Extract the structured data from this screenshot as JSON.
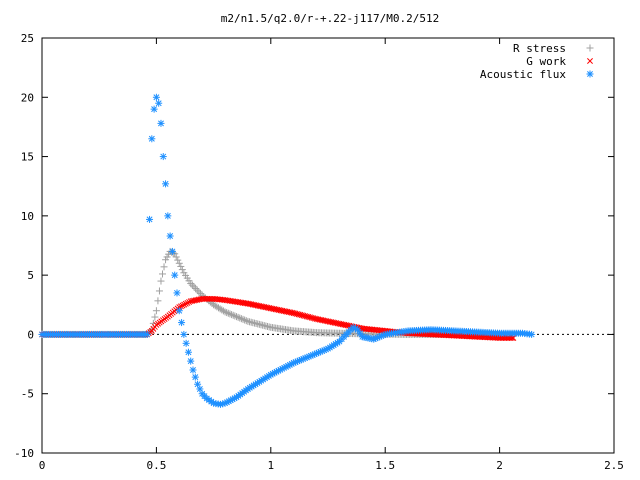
{
  "chart_data": {
    "type": "scatter",
    "title": "m2/n1.5/q2.0/r-+.22-j117/M0.2/512",
    "xlabel": "",
    "ylabel": "",
    "xlim": [
      0,
      2.5
    ],
    "ylim": [
      -10,
      25
    ],
    "x_ticks": [
      "0",
      "0.5",
      "1",
      "1.5",
      "2",
      "2.5"
    ],
    "y_ticks": [
      "-10",
      "-5",
      "0",
      "5",
      "10",
      "15",
      "20",
      "25"
    ],
    "grid": false,
    "legend_position": "top-right",
    "series": [
      {
        "name": "R stress",
        "marker": "plus",
        "color": "#a0a0a0",
        "points": [
          [
            0.0,
            0.0
          ],
          [
            0.46,
            0.0
          ],
          [
            0.48,
            0.4
          ],
          [
            0.5,
            2.0
          ],
          [
            0.52,
            4.5
          ],
          [
            0.54,
            6.3
          ],
          [
            0.56,
            7.0
          ],
          [
            0.58,
            6.8
          ],
          [
            0.6,
            6.0
          ],
          [
            0.62,
            5.2
          ],
          [
            0.65,
            4.3
          ],
          [
            0.7,
            3.3
          ],
          [
            0.75,
            2.5
          ],
          [
            0.8,
            1.9
          ],
          [
            0.9,
            1.1
          ],
          [
            1.0,
            0.6
          ],
          [
            1.1,
            0.3
          ],
          [
            1.2,
            0.15
          ],
          [
            1.3,
            0.1
          ],
          [
            1.4,
            0.05
          ],
          [
            1.6,
            0.0
          ],
          [
            2.0,
            0.0
          ]
        ]
      },
      {
        "name": "G work",
        "marker": "cross",
        "color": "#ff0000",
        "points": [
          [
            0.0,
            0.0
          ],
          [
            0.46,
            0.0
          ],
          [
            0.48,
            0.3
          ],
          [
            0.5,
            0.8
          ],
          [
            0.55,
            1.5
          ],
          [
            0.6,
            2.3
          ],
          [
            0.65,
            2.8
          ],
          [
            0.7,
            3.0
          ],
          [
            0.75,
            3.0
          ],
          [
            0.8,
            2.9
          ],
          [
            0.9,
            2.6
          ],
          [
            1.0,
            2.2
          ],
          [
            1.1,
            1.8
          ],
          [
            1.2,
            1.3
          ],
          [
            1.3,
            0.9
          ],
          [
            1.4,
            0.5
          ],
          [
            1.5,
            0.3
          ],
          [
            1.6,
            0.1
          ],
          [
            1.7,
            0.0
          ],
          [
            1.8,
            -0.1
          ],
          [
            1.9,
            -0.2
          ],
          [
            2.0,
            -0.3
          ],
          [
            2.06,
            -0.3
          ]
        ]
      },
      {
        "name": "Acoustic flux",
        "marker": "star",
        "color": "#1e90ff",
        "points": [
          [
            0.0,
            0.0
          ],
          [
            0.46,
            0.0
          ],
          [
            0.47,
            9.7
          ],
          [
            0.48,
            16.5
          ],
          [
            0.49,
            19.0
          ],
          [
            0.5,
            20.0
          ],
          [
            0.51,
            19.5
          ],
          [
            0.52,
            17.8
          ],
          [
            0.53,
            15.0
          ],
          [
            0.54,
            12.7
          ],
          [
            0.55,
            10.0
          ],
          [
            0.56,
            8.3
          ],
          [
            0.57,
            7.0
          ],
          [
            0.58,
            5.0
          ],
          [
            0.59,
            3.5
          ],
          [
            0.6,
            2.0
          ],
          [
            0.62,
            0.0
          ],
          [
            0.64,
            -1.5
          ],
          [
            0.66,
            -3.0
          ],
          [
            0.68,
            -4.2
          ],
          [
            0.7,
            -5.0
          ],
          [
            0.72,
            -5.4
          ],
          [
            0.75,
            -5.8
          ],
          [
            0.78,
            -5.9
          ],
          [
            0.8,
            -5.8
          ],
          [
            0.85,
            -5.3
          ],
          [
            0.9,
            -4.6
          ],
          [
            0.95,
            -4.0
          ],
          [
            1.0,
            -3.4
          ],
          [
            1.05,
            -2.9
          ],
          [
            1.1,
            -2.4
          ],
          [
            1.15,
            -2.0
          ],
          [
            1.2,
            -1.6
          ],
          [
            1.25,
            -1.2
          ],
          [
            1.3,
            -0.6
          ],
          [
            1.33,
            0.0
          ],
          [
            1.36,
            0.6
          ],
          [
            1.38,
            0.4
          ],
          [
            1.4,
            -0.2
          ],
          [
            1.45,
            -0.4
          ],
          [
            1.5,
            0.0
          ],
          [
            1.6,
            0.3
          ],
          [
            1.7,
            0.4
          ],
          [
            1.8,
            0.3
          ],
          [
            1.9,
            0.2
          ],
          [
            2.0,
            0.1
          ],
          [
            2.1,
            0.1
          ],
          [
            2.14,
            0.0
          ]
        ]
      }
    ]
  }
}
